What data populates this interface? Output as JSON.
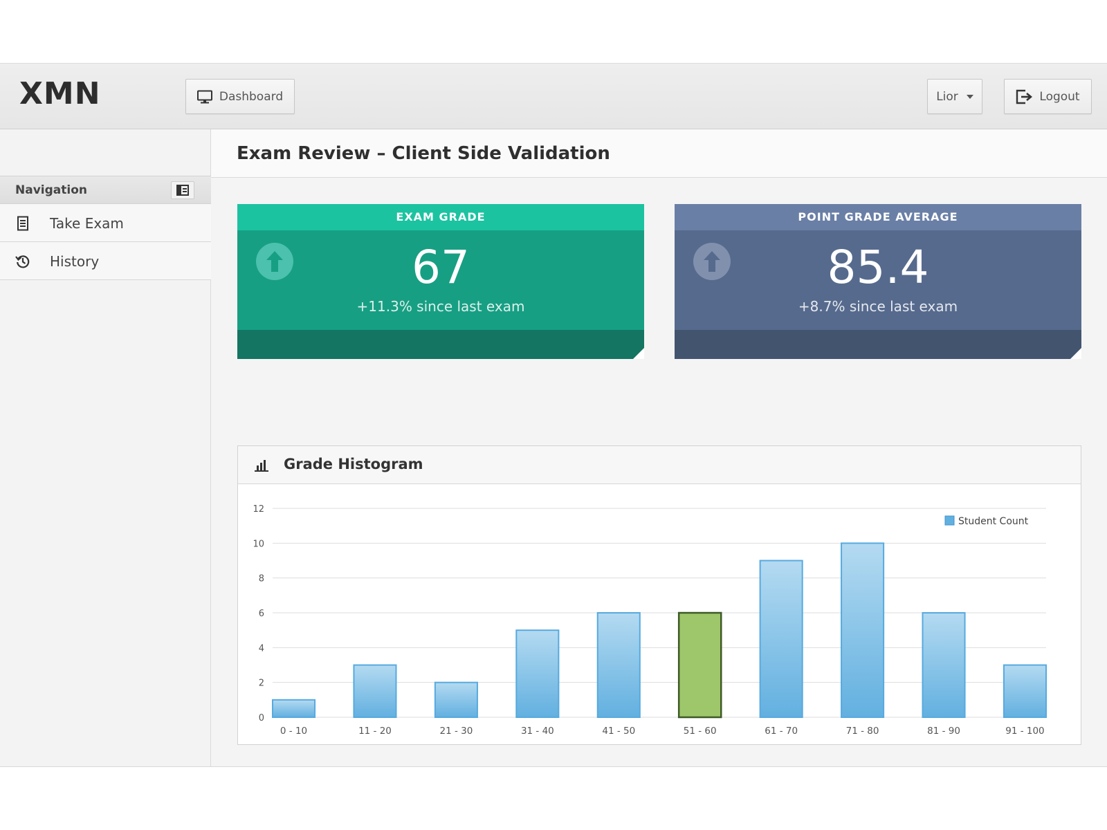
{
  "app": {
    "brand": "XMN"
  },
  "toolbar": {
    "dashboard_label": "Dashboard",
    "user_label": "Lior",
    "logout_label": "Logout"
  },
  "sidebar": {
    "title": "Navigation",
    "items": [
      {
        "label": "Take Exam",
        "icon": "document-icon"
      },
      {
        "label": "History",
        "icon": "history-icon"
      }
    ]
  },
  "page": {
    "title": "Exam Review – Client Side Validation"
  },
  "stats": [
    {
      "heading": "EXAM GRADE",
      "value": "67",
      "change": "+11.3% since last exam",
      "icon": "arrow-up-icon",
      "color": "#1cc3a1"
    },
    {
      "heading": "POINT GRADE AVERAGE",
      "value": "85.4",
      "change": "+8.7% since last exam",
      "icon": "arrow-up-icon",
      "color": "#6a7fa6"
    }
  ],
  "histogram": {
    "title": "Grade Histogram",
    "icon": "bar-chart-icon"
  },
  "chart_data": {
    "type": "bar",
    "categories": [
      "0 - 10",
      "11 - 20",
      "21 - 30",
      "31 - 40",
      "41 - 50",
      "51 - 60",
      "61 - 70",
      "71 - 80",
      "81 - 90",
      "91 - 100"
    ],
    "series": [
      {
        "name": "Student Count",
        "values": [
          1,
          3,
          2,
          5,
          6,
          6,
          9,
          10,
          6,
          3
        ]
      }
    ],
    "highlight_category": "51 - 60",
    "ylim": [
      0,
      12
    ],
    "yticks": [
      0,
      2,
      4,
      6,
      8,
      10,
      12
    ],
    "grid": true,
    "legend": "top-right",
    "colors": {
      "bar": "#7fbfe6",
      "bar_border": "#56aadf",
      "highlight": "#9ec66a",
      "highlight_border": "#3d5a27"
    }
  }
}
